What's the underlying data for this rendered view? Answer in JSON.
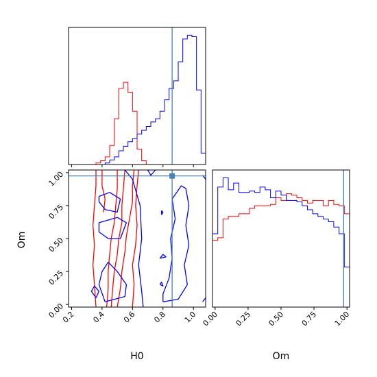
{
  "chart_data": {
    "type": "corner",
    "params": [
      "H0",
      "Om"
    ],
    "truth": {
      "H0": 0.86,
      "Om": 0.975
    },
    "colors": {
      "red": "#ff0000",
      "blue": "#0000ff",
      "truth": "#4682b4"
    },
    "axes": {
      "H0": {
        "label": "H0",
        "range": [
          0.18,
          1.08
        ],
        "ticks": [
          "0.2",
          "0.4",
          "0.6",
          "0.8",
          "1.0"
        ]
      },
      "Om": {
        "label": "Om",
        "range": [
          -0.02,
          1.02
        ],
        "ticks": [
          "0.00",
          "0.25",
          "0.50",
          "0.75",
          "1.00"
        ]
      }
    },
    "hist_H0": {
      "bin_edges": [
        0.18,
        0.21,
        0.24,
        0.27,
        0.3,
        0.33,
        0.36,
        0.39,
        0.42,
        0.45,
        0.48,
        0.51,
        0.54,
        0.57,
        0.6,
        0.63,
        0.66,
        0.69,
        0.72,
        0.75,
        0.78,
        0.81,
        0.84,
        0.87,
        0.9,
        0.93,
        0.96,
        0.99,
        1.02,
        1.05,
        1.08
      ],
      "series": [
        {
          "color": "red",
          "values": [
            0,
            0,
            0,
            0,
            0,
            0,
            2,
            5,
            10,
            25,
            60,
            100,
            108,
            95,
            70,
            20,
            5,
            0,
            0,
            0,
            0,
            0,
            0,
            0,
            0,
            0,
            0,
            0,
            0,
            0
          ]
        },
        {
          "color": "blue",
          "values": [
            0,
            0,
            0,
            0,
            0,
            0,
            0,
            0,
            2,
            6,
            10,
            18,
            24,
            30,
            34,
            40,
            45,
            50,
            56,
            60,
            70,
            85,
            100,
            110,
            135,
            165,
            170,
            168,
            98,
            15
          ]
        }
      ]
    },
    "hist_Om": {
      "bin_edges": [
        -0.02,
        0.02,
        0.06,
        0.1,
        0.14,
        0.18,
        0.22,
        0.26,
        0.3,
        0.34,
        0.38,
        0.42,
        0.46,
        0.5,
        0.54,
        0.58,
        0.62,
        0.66,
        0.7,
        0.74,
        0.78,
        0.82,
        0.86,
        0.9,
        0.94,
        0.98,
        1.02
      ],
      "series": [
        {
          "color": "red",
          "values": [
            0.5,
            0.52,
            0.66,
            0.68,
            0.68,
            0.7,
            0.7,
            0.74,
            0.76,
            0.76,
            0.76,
            0.77,
            0.82,
            0.8,
            0.85,
            0.84,
            0.82,
            0.8,
            0.78,
            0.8,
            0.8,
            0.76,
            0.8,
            0.77,
            0.76,
            0.7
          ]
        },
        {
          "color": "blue",
          "values": [
            0.55,
            0.9,
            0.97,
            0.88,
            0.93,
            0.86,
            0.86,
            0.87,
            0.86,
            0.9,
            0.88,
            0.82,
            0.87,
            0.84,
            0.8,
            0.8,
            0.79,
            0.76,
            0.73,
            0.7,
            0.68,
            0.66,
            0.64,
            0.6,
            0.55,
            0.3
          ]
        }
      ]
    },
    "contours": [
      {
        "color": "red",
        "points": [
          [
            0.36,
            -0.02
          ],
          [
            0.35,
            0.15
          ],
          [
            0.34,
            0.3
          ],
          [
            0.35,
            0.45
          ],
          [
            0.34,
            0.6
          ],
          [
            0.35,
            0.75
          ],
          [
            0.36,
            0.9
          ],
          [
            0.36,
            1.02
          ]
        ]
      },
      {
        "color": "red",
        "points": [
          [
            0.43,
            -0.02
          ],
          [
            0.44,
            0.12
          ],
          [
            0.44,
            0.25
          ],
          [
            0.45,
            0.38
          ],
          [
            0.46,
            0.5
          ],
          [
            0.48,
            0.62
          ],
          [
            0.49,
            0.75
          ],
          [
            0.5,
            0.88
          ],
          [
            0.5,
            1.02
          ]
        ]
      },
      {
        "color": "red",
        "points": [
          [
            0.46,
            -0.02
          ],
          [
            0.47,
            0.12
          ],
          [
            0.48,
            0.25
          ],
          [
            0.5,
            0.38
          ],
          [
            0.51,
            0.5
          ],
          [
            0.53,
            0.62
          ],
          [
            0.53,
            0.75
          ],
          [
            0.54,
            0.88
          ],
          [
            0.55,
            1.02
          ]
        ]
      },
      {
        "color": "red",
        "points": [
          [
            0.5,
            -0.02
          ],
          [
            0.52,
            0.12
          ],
          [
            0.53,
            0.25
          ],
          [
            0.55,
            0.4
          ],
          [
            0.56,
            0.52
          ],
          [
            0.58,
            0.65
          ],
          [
            0.6,
            0.78
          ],
          [
            0.6,
            0.9
          ],
          [
            0.61,
            1.02
          ]
        ]
      },
      {
        "color": "red",
        "points": [
          [
            0.6,
            -0.02
          ],
          [
            0.61,
            0.15
          ],
          [
            0.6,
            0.3
          ],
          [
            0.62,
            0.45
          ],
          [
            0.63,
            0.6
          ],
          [
            0.62,
            0.75
          ],
          [
            0.63,
            0.9
          ],
          [
            0.64,
            1.02
          ]
        ]
      },
      {
        "color": "red",
        "points": [
          [
            0.4,
            1.02
          ],
          [
            0.4,
            0.9
          ],
          [
            0.42,
            0.8
          ],
          [
            0.41,
            0.7
          ]
        ]
      },
      {
        "color": "blue",
        "points": [
          [
            0.38,
            0.82
          ],
          [
            0.45,
            0.85
          ],
          [
            0.52,
            0.8
          ],
          [
            0.5,
            0.7
          ],
          [
            0.42,
            0.72
          ],
          [
            0.38,
            0.78
          ],
          [
            0.38,
            0.82
          ]
        ]
      },
      {
        "color": "blue",
        "points": [
          [
            0.38,
            0.62
          ],
          [
            0.5,
            0.66
          ],
          [
            0.56,
            0.62
          ],
          [
            0.52,
            0.5
          ],
          [
            0.44,
            0.5
          ],
          [
            0.38,
            0.55
          ],
          [
            0.38,
            0.62
          ]
        ]
      },
      {
        "color": "blue",
        "points": [
          [
            0.42,
            0.02
          ],
          [
            0.55,
            0.06
          ],
          [
            0.56,
            0.15
          ],
          [
            0.5,
            0.25
          ],
          [
            0.44,
            0.32
          ],
          [
            0.4,
            0.25
          ],
          [
            0.38,
            0.15
          ],
          [
            0.42,
            0.02
          ]
        ]
      },
      {
        "color": "blue",
        "points": [
          [
            0.33,
            0.1
          ],
          [
            0.36,
            0.05
          ],
          [
            0.38,
            0.1
          ],
          [
            0.35,
            0.14
          ],
          [
            0.33,
            0.1
          ]
        ]
      },
      {
        "color": "blue",
        "points": [
          [
            0.55,
            1.02
          ],
          [
            0.6,
            0.95
          ],
          [
            0.65,
            0.75
          ],
          [
            0.66,
            0.5
          ],
          [
            0.64,
            0.3
          ],
          [
            0.66,
            0.1
          ],
          [
            0.67,
            -0.02
          ]
        ]
      },
      {
        "color": "blue",
        "points": [
          [
            0.7,
            1.02
          ],
          [
            0.72,
            0.98
          ],
          [
            0.75,
            1.02
          ]
        ]
      },
      {
        "color": "blue",
        "points": [
          [
            0.8,
            0.02
          ],
          [
            0.9,
            0.04
          ],
          [
            0.96,
            0.15
          ],
          [
            0.94,
            0.3
          ],
          [
            0.97,
            0.45
          ],
          [
            0.95,
            0.6
          ],
          [
            0.97,
            0.75
          ],
          [
            0.95,
            0.88
          ],
          [
            0.92,
            0.9
          ],
          [
            0.86,
            0.8
          ],
          [
            0.88,
            0.65
          ],
          [
            0.85,
            0.5
          ],
          [
            0.86,
            0.35
          ],
          [
            0.84,
            0.2
          ],
          [
            0.8,
            0.08
          ],
          [
            0.8,
            0.02
          ]
        ]
      },
      {
        "color": "blue",
        "points": [
          [
            1.06,
            0.02
          ],
          [
            1.08,
            0.05
          ]
        ]
      },
      {
        "color": "blue",
        "points": [
          [
            1.06,
            0.98
          ],
          [
            1.08,
            0.95
          ]
        ]
      },
      {
        "color": "blue",
        "points": [
          [
            0.78,
            0.35
          ],
          [
            0.82,
            0.36
          ],
          [
            0.8,
            0.38
          ],
          [
            0.78,
            0.35
          ]
        ]
      },
      {
        "color": "blue",
        "points": [
          [
            0.78,
            0.15
          ],
          [
            0.8,
            0.14
          ],
          [
            0.79,
            0.17
          ],
          [
            0.78,
            0.15
          ]
        ]
      },
      {
        "color": "blue",
        "points": [
          [
            0.79,
            0.68
          ],
          [
            0.8,
            0.7
          ],
          [
            0.79,
            0.71
          ],
          [
            0.79,
            0.68
          ]
        ]
      }
    ]
  }
}
